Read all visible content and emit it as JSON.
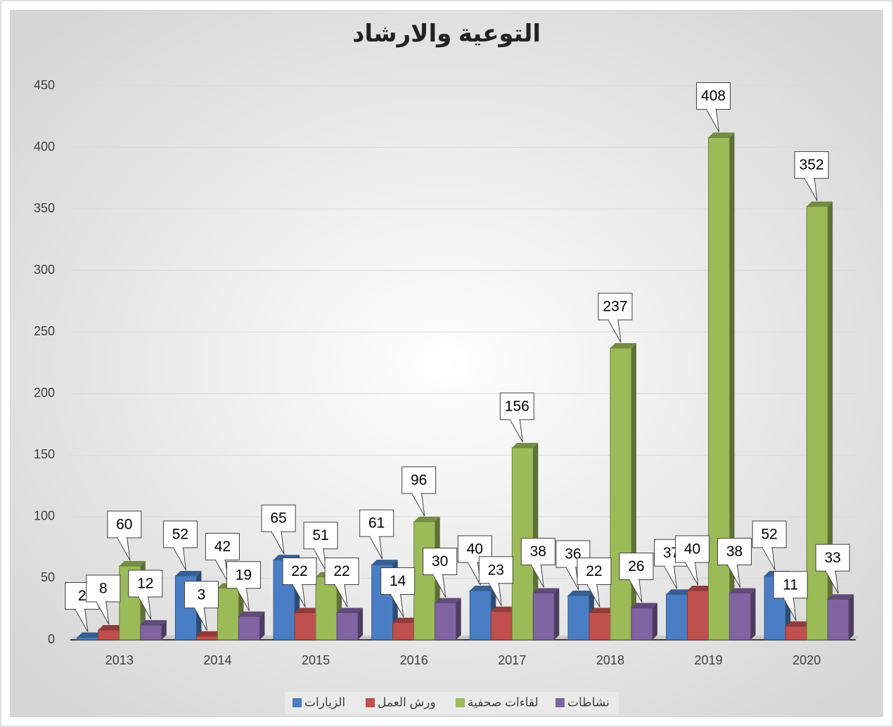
{
  "chart_data": {
    "type": "bar",
    "title": "التوعية والارشاد",
    "categories": [
      "2013",
      "2014",
      "2015",
      "2016",
      "2017",
      "2018",
      "2019",
      "2020"
    ],
    "series": [
      {
        "name": "الزيارات",
        "color": "#4a7ec4",
        "values": [
          2,
          52,
          65,
          61,
          40,
          36,
          37,
          52
        ]
      },
      {
        "name": "ورش العمل",
        "color": "#c0504d",
        "values": [
          8,
          3,
          22,
          14,
          23,
          22,
          40,
          11
        ]
      },
      {
        "name": "لقاءات صحفية",
        "color": "#9bbb59",
        "values": [
          60,
          42,
          51,
          96,
          156,
          237,
          408,
          352
        ]
      },
      {
        "name": "نشاطات",
        "color": "#8064a2",
        "values": [
          12,
          19,
          22,
          30,
          38,
          26,
          38,
          33
        ]
      }
    ],
    "ylim": [
      0,
      450
    ],
    "yticks": [
      0,
      50,
      100,
      150,
      200,
      250,
      300,
      350,
      400,
      450
    ],
    "grid": true,
    "legend": "bottom"
  }
}
